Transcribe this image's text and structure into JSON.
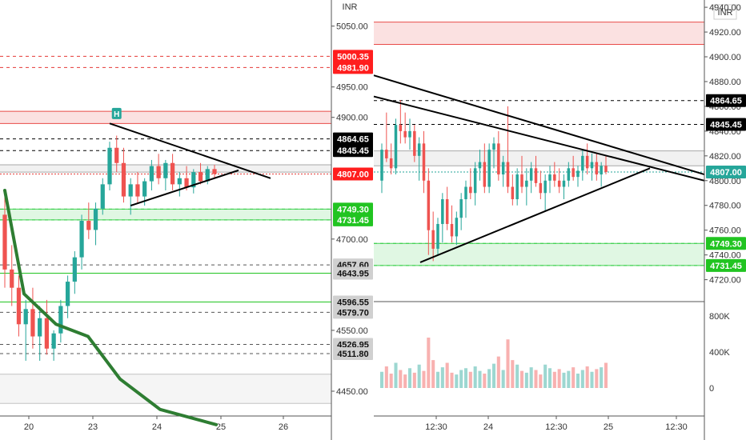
{
  "chart_data": [
    {
      "type": "candlestick",
      "panel": "left",
      "currency": "INR",
      "x_ticks": [
        "20",
        "23",
        "24",
        "25",
        "26"
      ],
      "y_ticks": [
        4450,
        4550,
        4600,
        4650,
        4700,
        4750,
        4800,
        4850,
        4900,
        4950,
        5000,
        5050
      ],
      "y_tick_labels": [
        "4450.00",
        "4550.00",
        "4700.00",
        "4900.00",
        "4950.00",
        "5050.00"
      ],
      "ylim": [
        4425,
        5085
      ],
      "marker_label": "H",
      "price_levels": [
        {
          "value": 5000.35,
          "label": "5000.35",
          "style": "dashed",
          "color": "#e53935",
          "badge": "#ff1e1e"
        },
        {
          "value": 4981.9,
          "label": "4981.90",
          "style": "dashed",
          "color": "#e53935",
          "badge": "#ff1e1e"
        },
        {
          "value": 4864.65,
          "label": "4864.65",
          "style": "dashed",
          "color": "#000000",
          "badge": "#000000"
        },
        {
          "value": 4845.45,
          "label": "4845.45",
          "style": "dashed",
          "color": "#000000",
          "badge": "#000000"
        },
        {
          "value": 4807.0,
          "label": "4807.00",
          "style": "dotted",
          "color": "#e53935",
          "badge": "#ff1e1e"
        },
        {
          "value": 4749.3,
          "label": "4749.30",
          "style": "dashed",
          "color": "#2ecc40",
          "badge": "#21c421"
        },
        {
          "value": 4731.45,
          "label": "4731.45",
          "style": "dashed",
          "color": "#2ecc40",
          "badge": "#21c421"
        },
        {
          "value": 4657.6,
          "label": "4657.60",
          "style": "dashed",
          "color": "#555555",
          "badge": "#d0d0d0"
        },
        {
          "value": 4643.95,
          "label": "4643.95",
          "style": "solid",
          "color": "#21c421",
          "badge": "#d0d0d0"
        },
        {
          "value": 4596.55,
          "label": "4596.55",
          "style": "solid",
          "color": "#21c421",
          "badge": "#d0d0d0"
        },
        {
          "value": 4579.7,
          "label": "4579.70",
          "style": "dashed",
          "color": "#555555",
          "badge": "#d0d0d0"
        },
        {
          "value": 4526.95,
          "label": "4526.95",
          "style": "dashed",
          "color": "#555555",
          "badge": "#d0d0d0"
        },
        {
          "value": 4511.8,
          "label": "4511.80",
          "style": "dashed",
          "color": "#555555",
          "badge": "#d0d0d0"
        }
      ],
      "zones": [
        {
          "from": 4890,
          "to": 4910,
          "color": "#e53935"
        },
        {
          "from": 4810,
          "to": 4822,
          "color": "#9e9e9e"
        },
        {
          "from": 4731.45,
          "to": 4749.3,
          "color": "#2ecc40"
        },
        {
          "from": 4430,
          "to": 4478,
          "color": "#bdbdbd"
        }
      ],
      "candles": [
        {
          "x": 1,
          "o": 4740,
          "h": 4775,
          "l": 4620,
          "c": 4650
        },
        {
          "x": 1.5,
          "o": 4650,
          "h": 4690,
          "l": 4590,
          "c": 4620
        },
        {
          "x": 2,
          "o": 4620,
          "h": 4640,
          "l": 4540,
          "c": 4560
        },
        {
          "x": 2.5,
          "o": 4560,
          "h": 4600,
          "l": 4500,
          "c": 4585
        },
        {
          "x": 3,
          "o": 4585,
          "h": 4620,
          "l": 4520,
          "c": 4540
        },
        {
          "x": 3.5,
          "o": 4540,
          "h": 4590,
          "l": 4500,
          "c": 4570
        },
        {
          "x": 4,
          "o": 4570,
          "h": 4600,
          "l": 4510,
          "c": 4520
        },
        {
          "x": 4.5,
          "o": 4520,
          "h": 4550,
          "l": 4500,
          "c": 4545
        },
        {
          "x": 5,
          "o": 4545,
          "h": 4600,
          "l": 4530,
          "c": 4590
        },
        {
          "x": 5.5,
          "o": 4590,
          "h": 4640,
          "l": 4570,
          "c": 4630
        },
        {
          "x": 6,
          "o": 4630,
          "h": 4680,
          "l": 4610,
          "c": 4670
        },
        {
          "x": 6.5,
          "o": 4670,
          "h": 4740,
          "l": 4650,
          "c": 4730
        },
        {
          "x": 7,
          "o": 4730,
          "h": 4760,
          "l": 4700,
          "c": 4715
        },
        {
          "x": 7.5,
          "o": 4715,
          "h": 4760,
          "l": 4690,
          "c": 4750
        },
        {
          "x": 8,
          "o": 4750,
          "h": 4800,
          "l": 4740,
          "c": 4790
        },
        {
          "x": 8.5,
          "o": 4790,
          "h": 4860,
          "l": 4780,
          "c": 4850
        },
        {
          "x": 9,
          "o": 4850,
          "h": 4870,
          "l": 4810,
          "c": 4825
        },
        {
          "x": 9.5,
          "o": 4825,
          "h": 4850,
          "l": 4760,
          "c": 4770
        },
        {
          "x": 10,
          "o": 4770,
          "h": 4800,
          "l": 4740,
          "c": 4790
        },
        {
          "x": 10.5,
          "o": 4790,
          "h": 4810,
          "l": 4760,
          "c": 4770
        },
        {
          "x": 11,
          "o": 4770,
          "h": 4800,
          "l": 4755,
          "c": 4795
        },
        {
          "x": 11.5,
          "o": 4795,
          "h": 4830,
          "l": 4780,
          "c": 4820
        },
        {
          "x": 12,
          "o": 4820,
          "h": 4840,
          "l": 4790,
          "c": 4800
        },
        {
          "x": 12.5,
          "o": 4800,
          "h": 4830,
          "l": 4780,
          "c": 4825
        },
        {
          "x": 13,
          "o": 4825,
          "h": 4840,
          "l": 4780,
          "c": 4790
        },
        {
          "x": 13.5,
          "o": 4790,
          "h": 4810,
          "l": 4770,
          "c": 4800
        },
        {
          "x": 14,
          "o": 4800,
          "h": 4820,
          "l": 4780,
          "c": 4785
        },
        {
          "x": 14.5,
          "o": 4785,
          "h": 4815,
          "l": 4775,
          "c": 4810
        },
        {
          "x": 15,
          "o": 4810,
          "h": 4825,
          "l": 4790,
          "c": 4795
        },
        {
          "x": 15.5,
          "o": 4795,
          "h": 4820,
          "l": 4790,
          "c": 4815
        },
        {
          "x": 16,
          "o": 4815,
          "h": 4822,
          "l": 4800,
          "c": 4807
        }
      ]
    },
    {
      "type": "candlestick",
      "panel": "right",
      "currency": "INR",
      "x_ticks": [
        "12:30",
        "24",
        "12:30",
        "25",
        "12:30"
      ],
      "y_ticks": [
        4720,
        4740,
        4760,
        4780,
        4800,
        4820,
        4840,
        4860,
        4880,
        4900,
        4920,
        4940
      ],
      "y_tick_labels": [
        "4720.00",
        "4740.00",
        "4760.00",
        "4780.00",
        "4800.00",
        "4820.00",
        "4840.00",
        "4860.00",
        "4880.00",
        "4900.00",
        "4920.00",
        "4940.00"
      ],
      "ylim": [
        4712,
        4942
      ],
      "price_levels": [
        {
          "value": 4864.65,
          "label": "4864.65",
          "style": "dashed",
          "color": "#000000",
          "badge": "#000000"
        },
        {
          "value": 4845.45,
          "label": "4845.45",
          "style": "dashed",
          "color": "#000000",
          "badge": "#000000"
        },
        {
          "value": 4807.0,
          "label": "4807.00",
          "style": "dotted",
          "color": "#26a69a",
          "badge": "#26a69a"
        },
        {
          "value": 4749.3,
          "label": "4749.30",
          "style": "dashed",
          "color": "#2ecc40",
          "badge": "#21c421"
        },
        {
          "value": 4731.45,
          "label": "4731.45",
          "style": "dashed",
          "color": "#2ecc40",
          "badge": "#21c421"
        }
      ],
      "zones": [
        {
          "from": 4910,
          "to": 4928,
          "color": "#e53935"
        },
        {
          "from": 4812,
          "to": 4824,
          "color": "#9e9e9e"
        },
        {
          "from": 4731.45,
          "to": 4749.3,
          "color": "#2ecc40"
        }
      ],
      "candles": [
        {
          "x": 0,
          "o": 4800,
          "h": 4830,
          "l": 4790,
          "c": 4825
        },
        {
          "x": 1,
          "o": 4825,
          "h": 4855,
          "l": 4815,
          "c": 4818
        },
        {
          "x": 2,
          "o": 4818,
          "h": 4830,
          "l": 4805,
          "c": 4810
        },
        {
          "x": 3,
          "o": 4810,
          "h": 4850,
          "l": 4805,
          "c": 4845
        },
        {
          "x": 4,
          "o": 4845,
          "h": 4865,
          "l": 4830,
          "c": 4840
        },
        {
          "x": 5,
          "o": 4840,
          "h": 4855,
          "l": 4830,
          "c": 4835
        },
        {
          "x": 6,
          "o": 4835,
          "h": 4850,
          "l": 4825,
          "c": 4840
        },
        {
          "x": 7,
          "o": 4840,
          "h": 4845,
          "l": 4815,
          "c": 4820
        },
        {
          "x": 8,
          "o": 4820,
          "h": 4835,
          "l": 4800,
          "c": 4830
        },
        {
          "x": 9,
          "o": 4830,
          "h": 4840,
          "l": 4790,
          "c": 4800
        },
        {
          "x": 10,
          "o": 4800,
          "h": 4810,
          "l": 4740,
          "c": 4760
        },
        {
          "x": 11,
          "o": 4760,
          "h": 4775,
          "l": 4735,
          "c": 4745
        },
        {
          "x": 12,
          "o": 4745,
          "h": 4770,
          "l": 4740,
          "c": 4765
        },
        {
          "x": 13,
          "o": 4765,
          "h": 4790,
          "l": 4750,
          "c": 4785
        },
        {
          "x": 14,
          "o": 4785,
          "h": 4795,
          "l": 4760,
          "c": 4765
        },
        {
          "x": 15,
          "o": 4765,
          "h": 4780,
          "l": 4750,
          "c": 4755
        },
        {
          "x": 16,
          "o": 4755,
          "h": 4775,
          "l": 4748,
          "c": 4770
        },
        {
          "x": 17,
          "o": 4770,
          "h": 4790,
          "l": 4760,
          "c": 4785
        },
        {
          "x": 18,
          "o": 4785,
          "h": 4800,
          "l": 4770,
          "c": 4795
        },
        {
          "x": 19,
          "o": 4795,
          "h": 4810,
          "l": 4785,
          "c": 4790
        },
        {
          "x": 20,
          "o": 4790,
          "h": 4815,
          "l": 4780,
          "c": 4810
        },
        {
          "x": 21,
          "o": 4810,
          "h": 4825,
          "l": 4800,
          "c": 4815
        },
        {
          "x": 22,
          "o": 4815,
          "h": 4830,
          "l": 4790,
          "c": 4795
        },
        {
          "x": 23,
          "o": 4795,
          "h": 4830,
          "l": 4790,
          "c": 4825
        },
        {
          "x": 24,
          "o": 4825,
          "h": 4835,
          "l": 4810,
          "c": 4830
        },
        {
          "x": 25,
          "o": 4830,
          "h": 4840,
          "l": 4800,
          "c": 4805
        },
        {
          "x": 26,
          "o": 4805,
          "h": 4820,
          "l": 4795,
          "c": 4815
        },
        {
          "x": 27,
          "o": 4815,
          "h": 4860,
          "l": 4790,
          "c": 4795
        },
        {
          "x": 28,
          "o": 4795,
          "h": 4805,
          "l": 4780,
          "c": 4785
        },
        {
          "x": 29,
          "o": 4785,
          "h": 4810,
          "l": 4780,
          "c": 4805
        },
        {
          "x": 30,
          "o": 4805,
          "h": 4820,
          "l": 4790,
          "c": 4795
        },
        {
          "x": 31,
          "o": 4795,
          "h": 4810,
          "l": 4780,
          "c": 4800
        },
        {
          "x": 32,
          "o": 4800,
          "h": 4815,
          "l": 4790,
          "c": 4810
        },
        {
          "x": 33,
          "o": 4810,
          "h": 4820,
          "l": 4795,
          "c": 4798
        },
        {
          "x": 34,
          "o": 4798,
          "h": 4808,
          "l": 4785,
          "c": 4790
        },
        {
          "x": 35,
          "o": 4790,
          "h": 4805,
          "l": 4775,
          "c": 4800
        },
        {
          "x": 36,
          "o": 4800,
          "h": 4812,
          "l": 4790,
          "c": 4805
        },
        {
          "x": 37,
          "o": 4805,
          "h": 4815,
          "l": 4795,
          "c": 4800
        },
        {
          "x": 38,
          "o": 4800,
          "h": 4810,
          "l": 4790,
          "c": 4795
        },
        {
          "x": 39,
          "o": 4795,
          "h": 4805,
          "l": 4785,
          "c": 4800
        },
        {
          "x": 40,
          "o": 4800,
          "h": 4815,
          "l": 4795,
          "c": 4810
        },
        {
          "x": 41,
          "o": 4810,
          "h": 4820,
          "l": 4800,
          "c": 4803
        },
        {
          "x": 42,
          "o": 4803,
          "h": 4812,
          "l": 4795,
          "c": 4808
        },
        {
          "x": 43,
          "o": 4808,
          "h": 4825,
          "l": 4800,
          "c": 4820
        },
        {
          "x": 44,
          "o": 4820,
          "h": 4830,
          "l": 4805,
          "c": 4810
        },
        {
          "x": 45,
          "o": 4810,
          "h": 4822,
          "l": 4800,
          "c": 4815
        },
        {
          "x": 46,
          "o": 4815,
          "h": 4822,
          "l": 4800,
          "c": 4805
        },
        {
          "x": 47,
          "o": 4805,
          "h": 4815,
          "l": 4795,
          "c": 4812
        },
        {
          "x": 48,
          "o": 4812,
          "h": 4820,
          "l": 4805,
          "c": 4807
        }
      ],
      "volume": {
        "ticks": [
          "800K",
          "400K",
          "0"
        ],
        "values": [
          180000,
          240000,
          160000,
          280000,
          200000,
          150000,
          220000,
          170000,
          260000,
          190000,
          560000,
          310000,
          180000,
          230000,
          280000,
          170000,
          150000,
          200000,
          220000,
          180000,
          240000,
          190000,
          160000,
          210000,
          270000,
          350000,
          200000,
          540000,
          310000,
          260000,
          190000,
          170000,
          230000,
          200000,
          150000,
          260000,
          220000,
          180000,
          210000,
          170000,
          190000,
          230000,
          160000,
          200000,
          240000,
          180000,
          210000,
          230000,
          280000
        ]
      }
    }
  ]
}
